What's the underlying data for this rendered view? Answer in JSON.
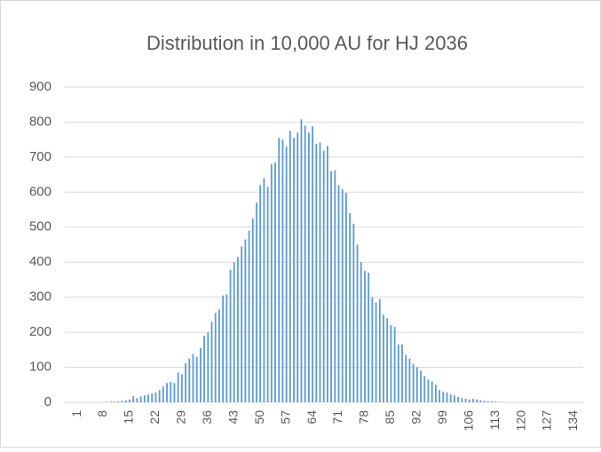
{
  "chart_data": {
    "type": "bar",
    "title": "Distribution in 10,000 AU for HJ 2036",
    "categories": [
      "1",
      null,
      null,
      null,
      null,
      null,
      null,
      "8",
      null,
      null,
      null,
      null,
      null,
      null,
      "15",
      null,
      null,
      null,
      null,
      null,
      null,
      "22",
      null,
      null,
      null,
      null,
      null,
      null,
      "29",
      null,
      null,
      null,
      null,
      null,
      null,
      "36",
      null,
      null,
      null,
      null,
      null,
      null,
      "43",
      null,
      null,
      null,
      null,
      null,
      null,
      "50",
      null,
      null,
      null,
      null,
      null,
      null,
      "57",
      null,
      null,
      null,
      null,
      null,
      null,
      "64",
      null,
      null,
      null,
      null,
      null,
      null,
      "71",
      null,
      null,
      null,
      null,
      null,
      null,
      "78",
      null,
      null,
      null,
      null,
      null,
      null,
      "85",
      null,
      null,
      null,
      null,
      null,
      null,
      "92",
      null,
      null,
      null,
      null,
      null,
      null,
      "99",
      null,
      null,
      null,
      null,
      null,
      null,
      "106",
      null,
      null,
      null,
      null,
      null,
      null,
      "113",
      null,
      null,
      null,
      null,
      null,
      null,
      "120",
      null,
      null,
      null,
      null,
      null,
      null,
      "127",
      null,
      null,
      null,
      null,
      null,
      null,
      "134",
      null,
      null
    ],
    "values": [
      0,
      0,
      0,
      0,
      0,
      0,
      0,
      0,
      1,
      2,
      2,
      3,
      4,
      6,
      8,
      18,
      12,
      17,
      20,
      22,
      25,
      28,
      35,
      45,
      55,
      58,
      55,
      85,
      80,
      112,
      125,
      138,
      130,
      155,
      190,
      200,
      230,
      255,
      265,
      305,
      308,
      378,
      400,
      415,
      445,
      465,
      490,
      525,
      570,
      620,
      640,
      615,
      680,
      685,
      755,
      750,
      730,
      775,
      755,
      770,
      808,
      790,
      770,
      788,
      738,
      742,
      718,
      732,
      660,
      662,
      620,
      608,
      598,
      540,
      510,
      450,
      400,
      375,
      370,
      300,
      285,
      295,
      250,
      240,
      220,
      215,
      165,
      165,
      135,
      125,
      110,
      100,
      90,
      75,
      65,
      60,
      50,
      35,
      30,
      28,
      22,
      20,
      15,
      12,
      10,
      8,
      10,
      8,
      6,
      4,
      3,
      3,
      2,
      1,
      0,
      0,
      0,
      0,
      0,
      0,
      0,
      0,
      0,
      0,
      0,
      0,
      0,
      0,
      0,
      0,
      0,
      0,
      0,
      0,
      0,
      0
    ],
    "color": "#5b9bd5",
    "ylim": [
      0,
      900
    ],
    "yticks": [
      0,
      100,
      200,
      300,
      400,
      500,
      600,
      700,
      800,
      900
    ],
    "grid": true
  }
}
